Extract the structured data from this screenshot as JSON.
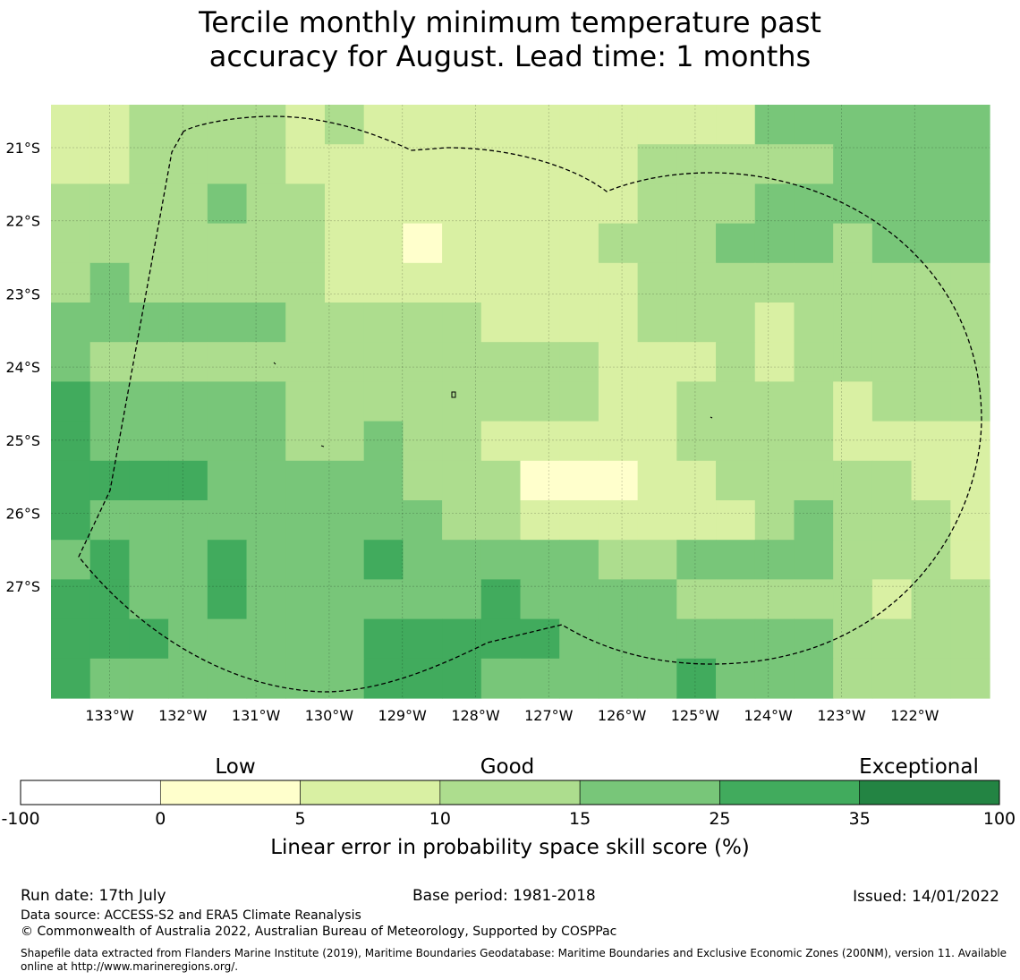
{
  "title": {
    "line1": "Tercile monthly minimum temperature past",
    "line2": "accuracy for August. Lead time: 1 months"
  },
  "map": {
    "lat_labels": [
      "21°S",
      "22°S",
      "23°S",
      "24°S",
      "25°S",
      "26°S",
      "27°S"
    ],
    "lon_labels": [
      "133°W",
      "132°W",
      "131°W",
      "130°W",
      "129°W",
      "128°W",
      "127°W",
      "126°W",
      "125°W",
      "124°W",
      "123°W",
      "122°W"
    ],
    "lon_start": -133.8,
    "lon_cell": 0.835,
    "lat_start": -20.4,
    "lat_cell": 0.555,
    "grid_values": [
      [
        7,
        7,
        12,
        12,
        12,
        12,
        7,
        12,
        7,
        7,
        7,
        7,
        7,
        7,
        7,
        7,
        7,
        7,
        20,
        20,
        20,
        20,
        20,
        20
      ],
      [
        7,
        7,
        12,
        12,
        12,
        12,
        7,
        7,
        7,
        7,
        7,
        7,
        7,
        7,
        7,
        12,
        12,
        12,
        12,
        12,
        20,
        20,
        20,
        20
      ],
      [
        12,
        12,
        12,
        12,
        20,
        12,
        12,
        7,
        7,
        7,
        7,
        7,
        7,
        7,
        7,
        12,
        12,
        12,
        20,
        20,
        20,
        20,
        20,
        20
      ],
      [
        12,
        12,
        12,
        12,
        12,
        12,
        12,
        7,
        7,
        3,
        7,
        7,
        7,
        7,
        12,
        12,
        12,
        20,
        20,
        20,
        12,
        20,
        20,
        20
      ],
      [
        12,
        20,
        12,
        12,
        12,
        12,
        12,
        7,
        7,
        7,
        7,
        7,
        7,
        7,
        7,
        12,
        12,
        12,
        12,
        12,
        12,
        12,
        12,
        12
      ],
      [
        20,
        20,
        20,
        20,
        20,
        20,
        12,
        12,
        12,
        12,
        12,
        7,
        7,
        7,
        7,
        12,
        12,
        12,
        7,
        12,
        12,
        12,
        12,
        12
      ],
      [
        20,
        12,
        12,
        12,
        12,
        12,
        12,
        12,
        12,
        12,
        12,
        12,
        12,
        12,
        7,
        7,
        7,
        12,
        7,
        12,
        12,
        12,
        12,
        12
      ],
      [
        30,
        20,
        20,
        20,
        20,
        20,
        12,
        12,
        12,
        12,
        12,
        12,
        12,
        12,
        7,
        7,
        12,
        12,
        12,
        12,
        7,
        12,
        12,
        12
      ],
      [
        30,
        20,
        20,
        20,
        20,
        20,
        12,
        12,
        20,
        12,
        12,
        7,
        7,
        7,
        7,
        7,
        12,
        12,
        12,
        12,
        7,
        7,
        7,
        7
      ],
      [
        30,
        30,
        30,
        30,
        20,
        20,
        20,
        20,
        20,
        12,
        12,
        12,
        3,
        3,
        3,
        7,
        7,
        12,
        12,
        12,
        12,
        12,
        7,
        7
      ],
      [
        30,
        20,
        20,
        20,
        20,
        20,
        20,
        20,
        20,
        20,
        12,
        12,
        7,
        7,
        7,
        7,
        7,
        7,
        12,
        20,
        12,
        12,
        12,
        7
      ],
      [
        20,
        30,
        20,
        20,
        30,
        20,
        20,
        20,
        30,
        20,
        20,
        20,
        20,
        20,
        12,
        12,
        20,
        20,
        20,
        20,
        12,
        12,
        12,
        7
      ],
      [
        30,
        30,
        20,
        20,
        30,
        20,
        20,
        20,
        20,
        20,
        20,
        30,
        20,
        20,
        20,
        20,
        12,
        12,
        12,
        12,
        12,
        7,
        12,
        12
      ],
      [
        30,
        30,
        30,
        20,
        20,
        20,
        20,
        20,
        30,
        30,
        30,
        30,
        30,
        20,
        20,
        20,
        20,
        20,
        20,
        20,
        12,
        12,
        12,
        12
      ],
      [
        30,
        20,
        20,
        20,
        20,
        20,
        20,
        20,
        30,
        30,
        30,
        20,
        20,
        20,
        20,
        20,
        30,
        20,
        20,
        20,
        12,
        12,
        12,
        12
      ]
    ]
  },
  "colorbar": {
    "category_labels": [
      "Low",
      "Good",
      "Exceptional"
    ],
    "tick_labels": [
      "-100",
      "0",
      "5",
      "10",
      "15",
      "25",
      "35",
      "100"
    ],
    "colors": [
      "#ffffff",
      "#ffffcc",
      "#d9f0a3",
      "#addd8e",
      "#78c679",
      "#41ab5d",
      "#238443"
    ],
    "label": "Linear error in probability space skill score (%)"
  },
  "footer": {
    "run_date": "Run date: 17th July",
    "base_period": "Base period: 1981-2018",
    "issued": "Issued: 14/01/2022",
    "data_source": "Data source: ACCESS-S2 and ERA5 Climate Reanalysis",
    "copyright": "© Commonwealth of Australia 2022, Australian Bureau of Meteorology, Supported by COSPPac",
    "shapefile_line1": "Shapefile data extracted from Flanders Marine Institute (2019), Maritime Boundaries Geodatabase: Maritime Boundaries and Exclusive Economic Zones (200NM), version 11. Available",
    "shapefile_line2": "online at http://www.marineregions.org/."
  }
}
